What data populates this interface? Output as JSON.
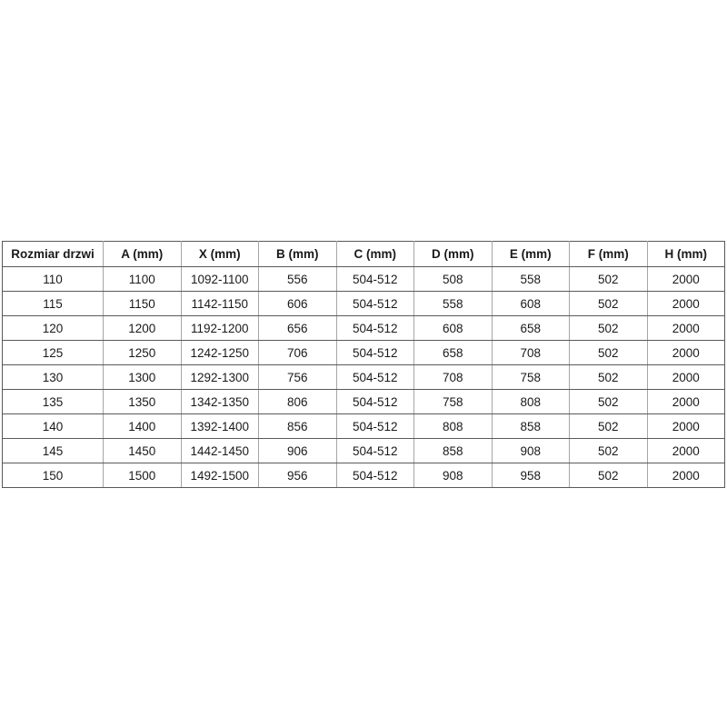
{
  "page": {
    "background_color": "#ffffff",
    "text_color": "#1a1a1a",
    "border_color_horizontal": "#595959",
    "border_color_vertical": "#a6a6a6"
  },
  "table": {
    "columns": [
      "Rozmiar drzwi",
      "A (mm)",
      "X (mm)",
      "B (mm)",
      "C (mm)",
      "D (mm)",
      "E (mm)",
      "F (mm)",
      "H (mm)"
    ],
    "rows": [
      [
        "110",
        "1100",
        "1092-1100",
        "556",
        "504-512",
        "508",
        "558",
        "502",
        "2000"
      ],
      [
        "115",
        "1150",
        "1142-1150",
        "606",
        "504-512",
        "558",
        "608",
        "502",
        "2000"
      ],
      [
        "120",
        "1200",
        "1192-1200",
        "656",
        "504-512",
        "608",
        "658",
        "502",
        "2000"
      ],
      [
        "125",
        "1250",
        "1242-1250",
        "706",
        "504-512",
        "658",
        "708",
        "502",
        "2000"
      ],
      [
        "130",
        "1300",
        "1292-1300",
        "756",
        "504-512",
        "708",
        "758",
        "502",
        "2000"
      ],
      [
        "135",
        "1350",
        "1342-1350",
        "806",
        "504-512",
        "758",
        "808",
        "502",
        "2000"
      ],
      [
        "140",
        "1400",
        "1392-1400",
        "856",
        "504-512",
        "808",
        "858",
        "502",
        "2000"
      ],
      [
        "145",
        "1450",
        "1442-1450",
        "906",
        "504-512",
        "858",
        "908",
        "502",
        "2000"
      ],
      [
        "150",
        "1500",
        "1492-1500",
        "956",
        "504-512",
        "908",
        "958",
        "502",
        "2000"
      ]
    ]
  }
}
